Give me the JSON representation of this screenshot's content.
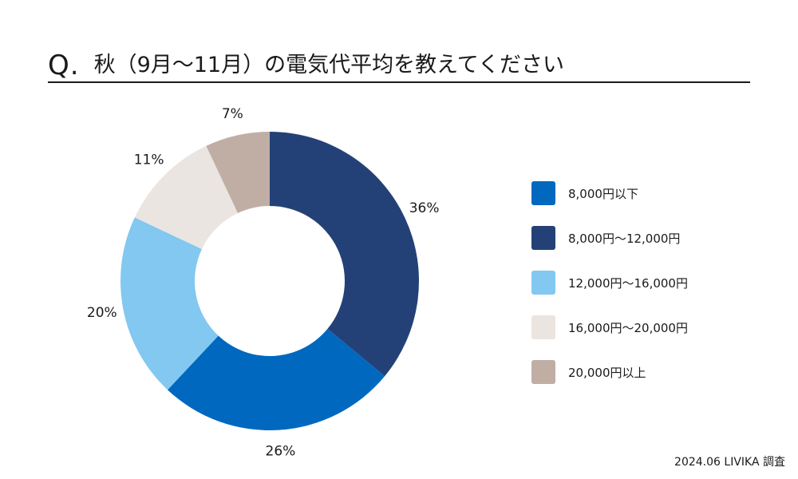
{
  "header": {
    "q_mark": "Q.",
    "question": "秋（9月〜11月）の電気代平均を教えてください"
  },
  "chart_data": {
    "type": "pie",
    "title": "",
    "slices": [
      {
        "label": "8,000円以下",
        "value": 26,
        "display": "26%",
        "color": "#0068BF"
      },
      {
        "label": "8,000円〜12,000円",
        "value": 36,
        "display": "36%",
        "color": "#244177"
      },
      {
        "label": "12,000円〜16,000円",
        "value": 20,
        "display": "20%",
        "color": "#82C8F0"
      },
      {
        "label": "16,000円〜20,000円",
        "value": 11,
        "display": "11%",
        "color": "#EAE5E1"
      },
      {
        "label": "20,000円以上",
        "value": 7,
        "display": "7%",
        "color": "#C0AEA4"
      }
    ],
    "slice_order_clockwise_from_top": [
      1,
      0,
      2,
      3,
      4
    ],
    "legend_position": "right",
    "donut": true
  },
  "source": "2024.06 LIVIKA 調査"
}
